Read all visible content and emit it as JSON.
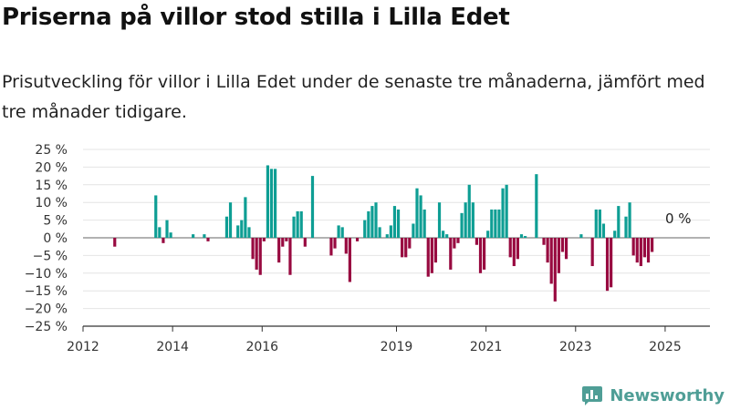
{
  "title": "Priserna på villor stod stilla i Lilla Edet",
  "subtitle": "Prisutveckling för villor i Lilla Edet under de senaste tre månaderna, jämfört med tre månader tidigare.",
  "brand": {
    "name": "Newsworthy",
    "color": "#4f9e96",
    "icon": "newsworthy-bar-chart-icon"
  },
  "colors": {
    "positive": "#0e9e94",
    "negative": "#980a40"
  },
  "chart_data": {
    "type": "bar",
    "title": "Priserna på villor stod stilla i Lilla Edet",
    "subtitle": "Prisutveckling för villor i Lilla Edet under de senaste tre månaderna, jämfört med tre månader tidigare.",
    "xlabel": "",
    "ylabel": "",
    "ylim": [
      -25,
      25
    ],
    "yticks": [
      -25,
      -20,
      -15,
      -10,
      -5,
      0,
      5,
      10,
      15,
      20,
      25
    ],
    "ytick_labels": [
      "−25 %",
      "−20 %",
      "−15 %",
      "−10 %",
      "−5 %",
      "0 %",
      "5 %",
      "10 %",
      "15 %",
      "20 %",
      "25 %"
    ],
    "x_range": [
      "2012-01",
      "2025-12"
    ],
    "xticks": [
      2012,
      2014,
      2016,
      2019,
      2021,
      2023,
      2025
    ],
    "grid": "horizontal",
    "legend": "none",
    "last_value_label": "0 %",
    "series": [
      {
        "x": [
          "2012-09"
        ],
        "values": [
          -2.5
        ]
      },
      {
        "x": [
          "2013-08",
          "2013-09",
          "2013-10",
          "2013-11",
          "2013-12"
        ],
        "values": [
          12,
          3,
          -1.5,
          5,
          1.5
        ]
      },
      {
        "x": [
          "2014-06",
          "2014-09",
          "2014-10"
        ],
        "values": [
          1,
          1,
          -1
        ]
      },
      {
        "x": [
          "2015-03",
          "2015-04",
          "2015-06",
          "2015-07",
          "2015-08",
          "2015-09",
          "2015-10",
          "2015-11",
          "2015-12"
        ],
        "values": [
          6,
          10,
          3.5,
          5,
          11.5,
          3,
          -6,
          -9,
          -10.5
        ]
      },
      {
        "x": [
          "2016-01",
          "2016-02",
          "2016-03",
          "2016-04",
          "2016-05",
          "2016-06",
          "2016-07",
          "2016-08",
          "2016-09",
          "2016-10",
          "2016-11",
          "2016-12"
        ],
        "values": [
          -1,
          20.5,
          19.5,
          19.5,
          -7,
          -2.5,
          -1,
          -10.5,
          6,
          7.5,
          7.5,
          -2.5
        ]
      },
      {
        "x": [
          "2017-02",
          "2017-07",
          "2017-08",
          "2017-09",
          "2017-10",
          "2017-11",
          "2017-12"
        ],
        "values": [
          17.5,
          -5,
          -3,
          3.5,
          3,
          -4.5,
          -12.5
        ]
      },
      {
        "x": [
          "2018-02",
          "2018-04",
          "2018-05",
          "2018-06",
          "2018-07",
          "2018-08",
          "2018-10",
          "2018-11",
          "2018-12"
        ],
        "values": [
          -1,
          5,
          7.5,
          9,
          10,
          3,
          1,
          3.5,
          9
        ]
      },
      {
        "x": [
          "2019-01",
          "2019-02",
          "2019-03",
          "2019-04",
          "2019-05",
          "2019-06",
          "2019-07",
          "2019-08",
          "2019-09",
          "2019-10",
          "2019-11",
          "2019-12"
        ],
        "values": [
          8,
          -5.5,
          -5.5,
          -3,
          4,
          14,
          12,
          8,
          -11,
          -10,
          -7,
          10
        ]
      },
      {
        "x": [
          "2020-01",
          "2020-02",
          "2020-03",
          "2020-04",
          "2020-05",
          "2020-06",
          "2020-07",
          "2020-08",
          "2020-09",
          "2020-10",
          "2020-11",
          "2020-12"
        ],
        "values": [
          2,
          1,
          -9,
          -3,
          -1.5,
          7,
          10,
          15,
          10,
          -2,
          -10,
          -9
        ]
      },
      {
        "x": [
          "2021-01",
          "2021-02",
          "2021-03",
          "2021-04",
          "2021-05",
          "2021-06",
          "2021-07",
          "2021-08",
          "2021-09",
          "2021-10",
          "2021-11"
        ],
        "values": [
          2,
          8,
          8,
          8,
          14,
          15,
          -5.5,
          -8,
          -6,
          1,
          0.5
        ]
      },
      {
        "x": [
          "2022-02",
          "2022-04",
          "2022-05",
          "2022-06",
          "2022-07",
          "2022-08",
          "2022-09",
          "2022-10"
        ],
        "values": [
          18,
          -2,
          -7,
          -13,
          -18,
          -10,
          -4,
          -6
        ]
      },
      {
        "x": [
          "2023-02",
          "2023-05",
          "2023-06",
          "2023-07",
          "2023-08",
          "2023-09",
          "2023-10",
          "2023-11",
          "2023-12"
        ],
        "values": [
          1,
          -8,
          8,
          8,
          4,
          -15,
          -14,
          2,
          9
        ]
      },
      {
        "x": [
          "2024-02",
          "2024-03",
          "2024-04",
          "2024-05",
          "2024-06",
          "2024-07",
          "2024-08",
          "2024-09"
        ],
        "values": [
          6,
          10,
          -5,
          -7,
          -8,
          -5.5,
          -7,
          -4
        ]
      }
    ]
  }
}
